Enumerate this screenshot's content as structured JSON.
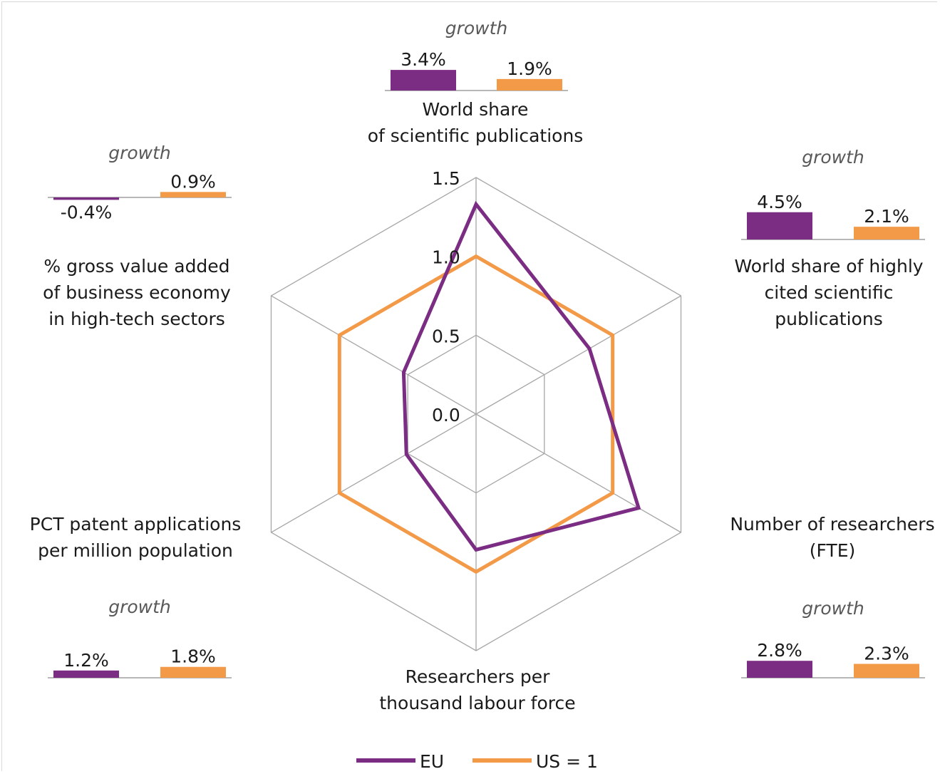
{
  "chart_data": {
    "type": "radar",
    "title": "",
    "scale_ticks": [
      "0.0",
      "0.5",
      "1.0",
      "1.5"
    ],
    "range": [
      0,
      1.5
    ],
    "axes": [
      {
        "label": [
          "World share",
          "of scientific publications"
        ]
      },
      {
        "label": [
          "World share of highly",
          "cited scientific",
          "publications"
        ]
      },
      {
        "label": [
          "Number of researchers",
          "(FTE)"
        ]
      },
      {
        "label": [
          "Researchers per",
          "thousand labour force"
        ]
      },
      {
        "label": [
          "PCT patent applications",
          "per million population"
        ]
      },
      {
        "label": [
          "% gross value added",
          "of business economy",
          "in high-tech sectors"
        ]
      }
    ],
    "series": [
      {
        "name": "EU",
        "color": "#7b2c83",
        "values": [
          1.33,
          0.83,
          1.19,
          0.86,
          0.51,
          0.53
        ]
      },
      {
        "name": "US = 1",
        "color": "#f39a49",
        "values": [
          1.0,
          1.0,
          1.0,
          1.0,
          1.0,
          1.0
        ]
      }
    ],
    "growth_label": "growth",
    "growth": [
      {
        "axis": 0,
        "eu": 3.4,
        "us": 1.9,
        "eu_label": "3.4%",
        "us_label": "1.9%"
      },
      {
        "axis": 1,
        "eu": 4.5,
        "us": 2.1,
        "eu_label": "4.5%",
        "us_label": "2.1%"
      },
      {
        "axis": 2,
        "eu": 2.8,
        "us": 2.3,
        "eu_label": "2.8%",
        "us_label": "2.3%"
      },
      {
        "axis": 4,
        "eu": 1.2,
        "us": 1.8,
        "eu_label": "1.2%",
        "us_label": "1.8%"
      },
      {
        "axis": 5,
        "eu": -0.4,
        "us": 0.9,
        "eu_label": "-0.4%",
        "us_label": "0.9%"
      }
    ],
    "legend": {
      "position": "bottom"
    }
  }
}
